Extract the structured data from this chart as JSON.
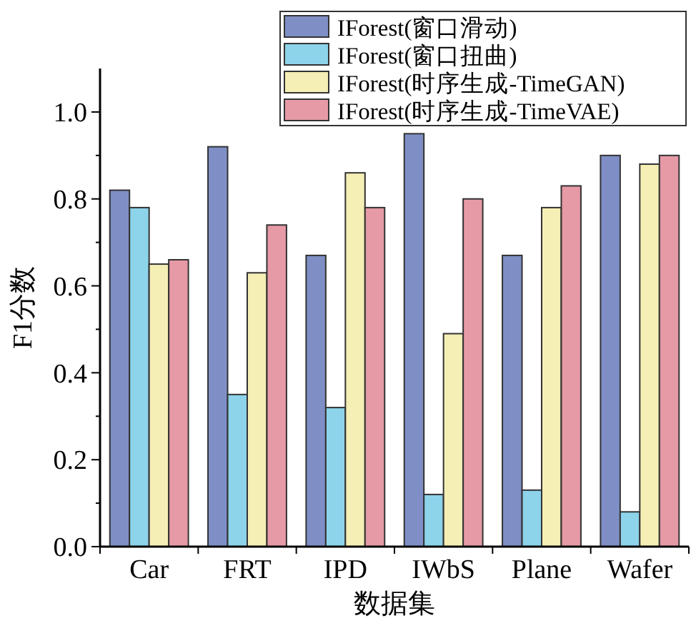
{
  "chart_data": {
    "type": "bar",
    "xlabel": "数据集",
    "ylabel": "F1分数",
    "categories": [
      "Car",
      "FRT",
      "IPD",
      "IWbS",
      "Plane",
      "Wafer"
    ],
    "series": [
      {
        "name": "IForest(窗口滑动)",
        "color": "#7f8fc6",
        "values": [
          0.82,
          0.92,
          0.67,
          0.95,
          0.67,
          0.9
        ]
      },
      {
        "name": "IForest(窗口扭曲)",
        "color": "#8dd3ea",
        "values": [
          0.78,
          0.35,
          0.32,
          0.12,
          0.13,
          0.08
        ]
      },
      {
        "name": "IForest(时序生成-TimeGAN)",
        "color": "#f5eeb5",
        "values": [
          0.65,
          0.63,
          0.86,
          0.49,
          0.78,
          0.88
        ]
      },
      {
        "name": "IForest(时序生成-TimeVAE)",
        "color": "#e59aa5",
        "values": [
          0.66,
          0.74,
          0.78,
          0.8,
          0.83,
          0.9
        ]
      }
    ],
    "ylim": [
      0,
      1.1
    ],
    "yticks": [
      {
        "value": 0,
        "label": "0.0"
      },
      {
        "value": 0.1,
        "label": null
      },
      {
        "value": 0.2,
        "label": "0.2"
      },
      {
        "value": 0.3,
        "label": null
      },
      {
        "value": 0.4,
        "label": "0.4"
      },
      {
        "value": 0.5,
        "label": null
      },
      {
        "value": 0.6,
        "label": "0.6"
      },
      {
        "value": 0.7,
        "label": null
      },
      {
        "value": 0.8,
        "label": "0.8"
      },
      {
        "value": 0.9,
        "label": null
      },
      {
        "value": 1.0,
        "label": "1.0"
      }
    ],
    "grid": false,
    "legend": "top right"
  }
}
